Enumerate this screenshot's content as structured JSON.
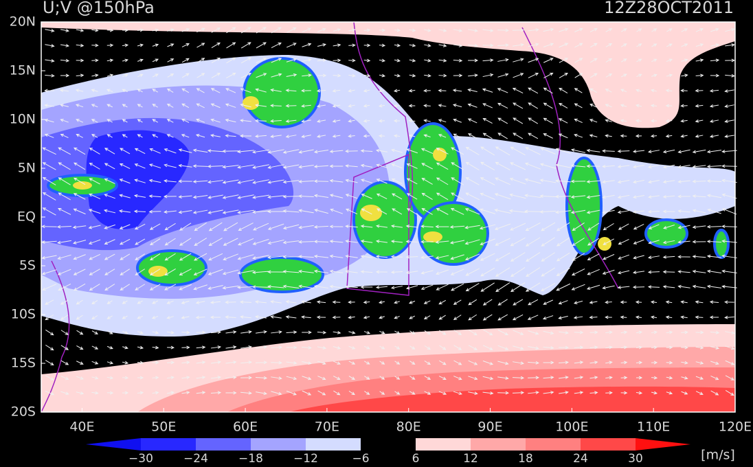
{
  "title": "U;V @150hPa",
  "time": "12Z28OCT2011",
  "lat_labels": [
    "20N",
    "15N",
    "10N",
    "5N",
    "EQ",
    "5S",
    "10S",
    "15S",
    "20S"
  ],
  "lon_labels": [
    "40E",
    "50E",
    "60E",
    "70E",
    "80E",
    "90E",
    "100E",
    "110E",
    "120E"
  ],
  "colorbar": {
    "labels": [
      "−30",
      "−24",
      "−18",
      "−12",
      "−6",
      "6",
      "12",
      "18",
      "24",
      "30"
    ],
    "colors": [
      "#1010f0",
      "#2828ff",
      "#6464ff",
      "#a4a4ff",
      "#d4dcff",
      "#000000",
      "#ffd8d8",
      "#ffa8a8",
      "#ff8080",
      "#ff4848",
      "#ff1010"
    ],
    "unit": "[m/s]"
  }
}
